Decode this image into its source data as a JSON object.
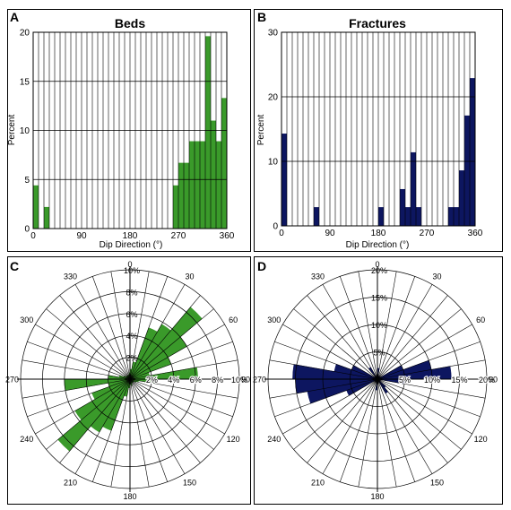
{
  "colors": {
    "beds": "#3a9a2a",
    "fractures": "#0d1660",
    "grid": "#000000",
    "background": "#ffffff"
  },
  "chart_data": [
    {
      "panel_label": "A",
      "type": "bar",
      "title": "Beds",
      "xlabel": "Dip Direction (°)",
      "ylabel": "Percent",
      "xlim": [
        0,
        360
      ],
      "ylim": [
        0,
        20
      ],
      "xticks": [
        "0",
        "90",
        "180",
        "270",
        "360"
      ],
      "yticks": [
        "0",
        "5",
        "10",
        "15",
        "20"
      ],
      "bin_width": 10,
      "bin_starts": [
        0,
        10,
        20,
        30,
        40,
        50,
        60,
        70,
        80,
        90,
        100,
        110,
        120,
        130,
        140,
        150,
        160,
        170,
        180,
        190,
        200,
        210,
        220,
        230,
        240,
        250,
        260,
        270,
        280,
        290,
        300,
        310,
        320,
        330,
        340,
        350
      ],
      "values": [
        4.4,
        0,
        2.2,
        0,
        0,
        0,
        0,
        0,
        0,
        0,
        0,
        0,
        0,
        0,
        0,
        0,
        0,
        0,
        0,
        0,
        0,
        0,
        0,
        0,
        0,
        0,
        4.4,
        6.7,
        6.7,
        8.9,
        8.9,
        8.9,
        19.6,
        11.0,
        8.9,
        13.3
      ],
      "grid": true,
      "color": "#3a9a2a"
    },
    {
      "panel_label": "B",
      "type": "bar",
      "title": "Fractures",
      "xlabel": "Dip Direction (°)",
      "ylabel": "Percent",
      "xlim": [
        0,
        360
      ],
      "ylim": [
        0,
        30
      ],
      "xticks": [
        "0",
        "90",
        "180",
        "270",
        "360"
      ],
      "yticks": [
        "0",
        "10",
        "20",
        "30"
      ],
      "bin_width": 10,
      "bin_starts": [
        0,
        10,
        20,
        30,
        40,
        50,
        60,
        70,
        80,
        90,
        100,
        110,
        120,
        130,
        140,
        150,
        160,
        170,
        180,
        190,
        200,
        210,
        220,
        230,
        240,
        250,
        260,
        270,
        280,
        290,
        300,
        310,
        320,
        330,
        340,
        350
      ],
      "values": [
        14.3,
        0,
        0,
        0,
        0,
        0,
        2.9,
        0,
        0,
        0,
        0,
        0,
        0,
        0,
        0,
        0,
        0,
        0,
        2.9,
        0,
        0,
        0,
        5.7,
        2.9,
        11.4,
        2.9,
        0,
        0,
        0,
        0,
        0,
        2.9,
        2.9,
        8.6,
        17.1,
        22.9
      ],
      "grid": true,
      "color": "#0d1660"
    },
    {
      "panel_label": "C",
      "type": "rose",
      "angle_labels": [
        "0",
        "30",
        "60",
        "90",
        "120",
        "150",
        "180",
        "210",
        "240",
        "270",
        "300",
        "330"
      ],
      "radial_labels": [
        "2%",
        "4%",
        "6%",
        "8%",
        "10%"
      ],
      "r_max": 10,
      "sector_width": 10,
      "sector_starts": [
        0,
        10,
        20,
        30,
        40,
        50,
        60,
        70,
        80,
        90,
        100,
        110,
        120,
        130,
        140,
        150,
        160,
        170,
        180,
        190,
        200,
        210,
        220,
        230,
        240,
        250,
        260,
        270,
        280,
        290,
        300,
        310,
        320,
        330,
        340,
        350
      ],
      "values": [
        0.9,
        1.6,
        5.0,
        5.8,
        8.6,
        6.0,
        4.0,
        1.8,
        6.2,
        2.2,
        0.8,
        0.6,
        0.4,
        0.4,
        0.4,
        0.4,
        0.6,
        0.4,
        0.8,
        1.6,
        5.0,
        5.6,
        8.6,
        5.8,
        3.7,
        2.0,
        6.0,
        2.0,
        1.0,
        0.6,
        0.4,
        0.4,
        0.4,
        0.4,
        0.4,
        0.6
      ],
      "color": "#3a9a2a"
    },
    {
      "panel_label": "D",
      "type": "rose",
      "angle_labels": [
        "0",
        "30",
        "60",
        "90",
        "120",
        "150",
        "180",
        "210",
        "240",
        "270",
        "300",
        "330"
      ],
      "radial_labels": [
        "5%",
        "10%",
        "15%",
        "20%"
      ],
      "r_max": 20,
      "sector_width": 10,
      "sector_starts": [
        0,
        10,
        20,
        30,
        40,
        50,
        60,
        70,
        80,
        90,
        100,
        110,
        120,
        130,
        140,
        150,
        160,
        170,
        180,
        190,
        200,
        210,
        220,
        230,
        240,
        250,
        260,
        270,
        280,
        290,
        300,
        310,
        320,
        330,
        340,
        350
      ],
      "values": [
        2.0,
        0.6,
        0.6,
        0.6,
        0.6,
        0.6,
        5.0,
        10.0,
        13.5,
        5.0,
        0.6,
        0.6,
        0.6,
        2.0,
        3.0,
        0.6,
        0.6,
        0.6,
        2.0,
        0.6,
        0.6,
        0.6,
        0.6,
        0.6,
        6.0,
        13.0,
        15.0,
        15.5,
        8.0,
        5.0,
        0.6,
        0.6,
        2.5,
        0.6,
        0.6,
        0.6
      ],
      "color": "#0d1660"
    }
  ]
}
